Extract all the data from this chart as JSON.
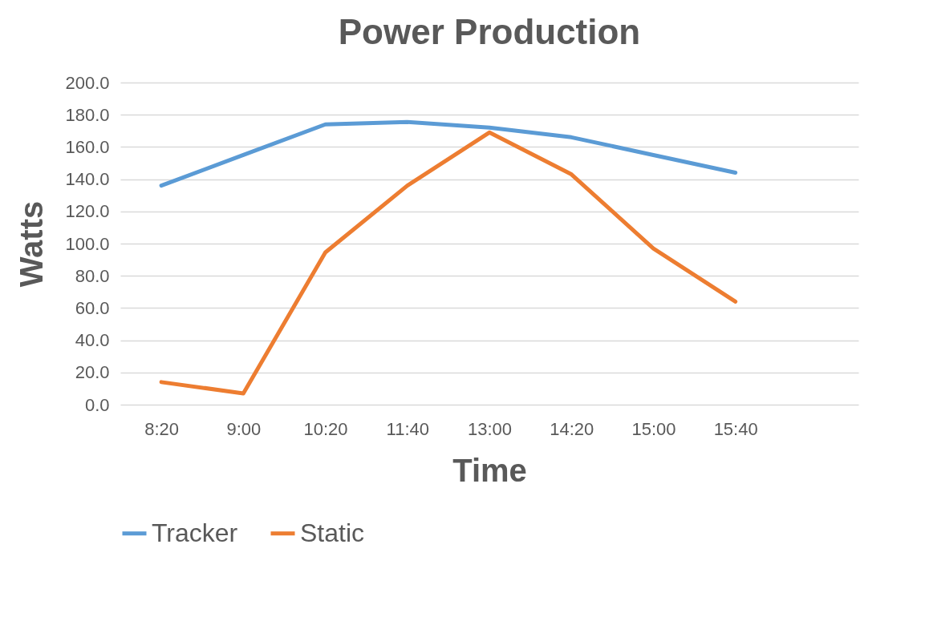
{
  "chart_data": {
    "type": "line",
    "title": "Power Production",
    "xlabel": "Time",
    "ylabel": "Watts",
    "categories": [
      "8:20",
      "9:00",
      "10:20",
      "11:40",
      "13:00",
      "14:20",
      "15:00",
      "15:40",
      null
    ],
    "series": [
      {
        "name": "Tracker",
        "color": "#5b9bd5",
        "values": [
          136,
          155,
          174,
          175.5,
          172,
          166,
          155,
          144,
          null
        ]
      },
      {
        "name": "Static",
        "color": "#ed7d31",
        "values": [
          14,
          7,
          94.5,
          136,
          169,
          143,
          97,
          64,
          null
        ]
      }
    ],
    "ylim": [
      0,
      200
    ],
    "yticks": [
      {
        "value": 0,
        "label": "0.0"
      },
      {
        "value": 20,
        "label": "20.0"
      },
      {
        "value": 40,
        "label": "40.0"
      },
      {
        "value": 60,
        "label": "60.0"
      },
      {
        "value": 80,
        "label": "80.0"
      },
      {
        "value": 100,
        "label": "100.0"
      },
      {
        "value": 120,
        "label": "120.0"
      },
      {
        "value": 140,
        "label": "140.0"
      },
      {
        "value": 160,
        "label": "160.0"
      },
      {
        "value": 180,
        "label": "180.0"
      },
      {
        "value": 200,
        "label": "200.0"
      }
    ],
    "grid": "y",
    "legend": "bottom",
    "line_style": "solid"
  }
}
